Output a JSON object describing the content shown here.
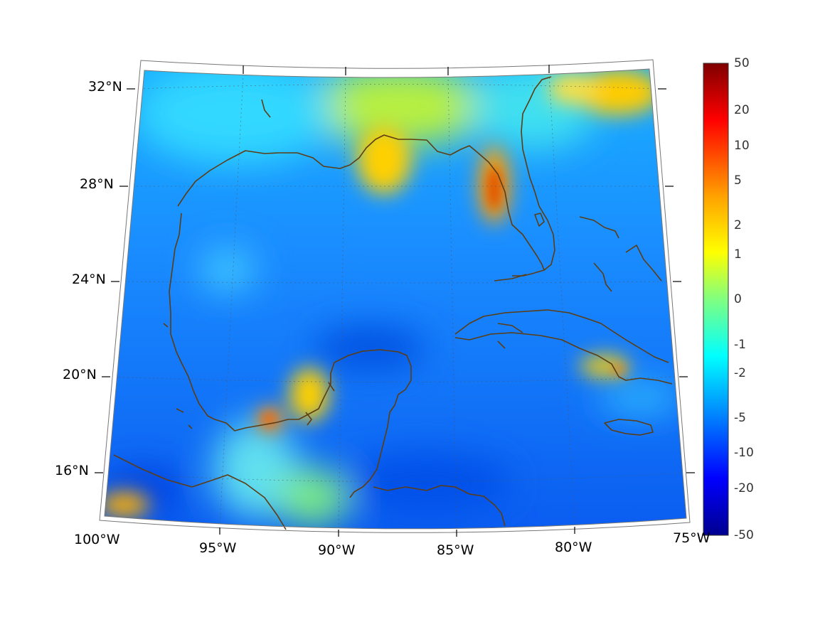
{
  "map": {
    "projection": "conic",
    "extent": {
      "lon": [
        -100,
        -75
      ],
      "lat": [
        14,
        33
      ]
    },
    "longitude_labels": [
      "100°W",
      "95°W",
      "90°W",
      "85°W",
      "80°W",
      "75°W"
    ],
    "latitude_labels": [
      "32°N",
      "28°N",
      "24°N",
      "20°N",
      "16°N"
    ],
    "grid": "dotted",
    "coastline_color": "#5c3d14"
  },
  "colorbar": {
    "orientation": "vertical",
    "scale": "symmetric-log",
    "tick_labels": [
      "50",
      "20",
      "10",
      "5",
      "2",
      "1",
      "0",
      "-1",
      "-2",
      "-5",
      "-10",
      "-20",
      "-50"
    ],
    "colormap": [
      "#7f0000",
      "#ff0000",
      "#ffa000",
      "#ffff00",
      "#80ff80",
      "#00ffff",
      "#0080ff",
      "#0000ff",
      "#00008f"
    ]
  }
}
